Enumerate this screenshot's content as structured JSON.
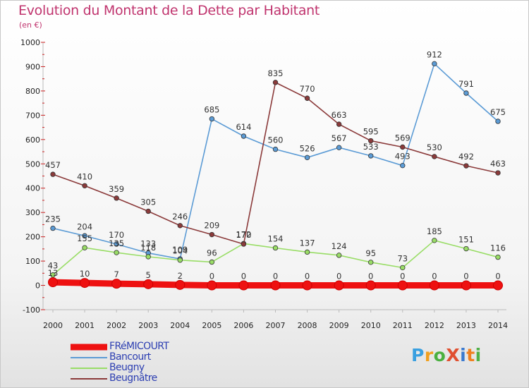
{
  "title": "Evolution du Montant de la Dette par Habitant",
  "subtitle": "(en €)",
  "logo": {
    "text": "ProXiti",
    "colors": [
      "#3aa0e0",
      "#f0a020",
      "#4ab040",
      "#e05030",
      "#3a7ad0",
      "#f08020",
      "#50b048"
    ]
  },
  "chart_data": {
    "type": "line",
    "title": "Evolution du Montant de la Dette par Habitant",
    "ylabel": "(en €)",
    "x": [
      "2000",
      "2001",
      "2002",
      "2003",
      "2004",
      "2005",
      "2006",
      "2007",
      "2008",
      "2009",
      "2010",
      "2011",
      "2012",
      "2013",
      "2014"
    ],
    "ylim": [
      -100,
      1000
    ],
    "yticks": [
      "-100",
      "0",
      "100",
      "200",
      "300",
      "400",
      "500",
      "600",
      "700",
      "800",
      "900",
      "1000"
    ],
    "legend_position": "bottom-left",
    "series": [
      {
        "name": "FRéMICOURT",
        "color": "#ee1111",
        "style": "thick",
        "values": [
          13,
          10,
          7,
          5,
          2,
          0,
          0,
          0,
          0,
          0,
          0,
          0,
          0,
          0,
          0
        ]
      },
      {
        "name": "Bancourt",
        "color": "#5b9bd5",
        "style": "thin",
        "values": [
          235,
          204,
          170,
          133,
          109,
          685,
          614,
          560,
          526,
          567,
          533,
          493,
          912,
          791,
          675
        ]
      },
      {
        "name": "Beugny",
        "color": "#99dd66",
        "style": "thin",
        "values": [
          43,
          155,
          135,
          118,
          104,
          96,
          172,
          154,
          137,
          124,
          95,
          73,
          185,
          151,
          116
        ]
      },
      {
        "name": "Beugnâtre",
        "color": "#8b3a3a",
        "style": "thin",
        "values": [
          457,
          410,
          359,
          305,
          246,
          209,
          170,
          835,
          770,
          663,
          595,
          569,
          530,
          492,
          463
        ]
      }
    ]
  }
}
